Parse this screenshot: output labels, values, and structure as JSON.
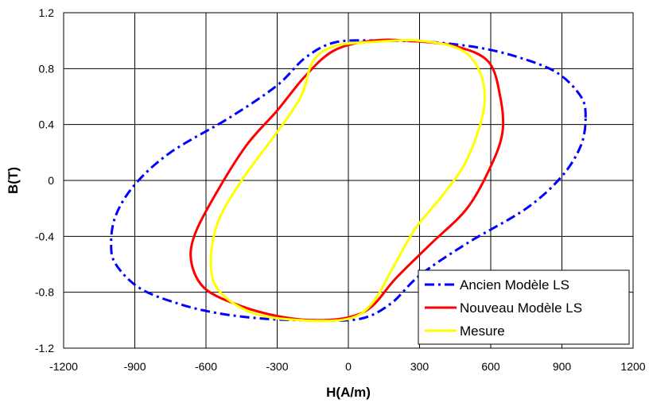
{
  "chart_data": {
    "type": "line",
    "title": "",
    "xlabel": "H(A/m)",
    "ylabel": "B(T)",
    "xlim": [
      -1200,
      1200
    ],
    "ylim": [
      -1.2,
      1.2
    ],
    "x_ticks": [
      -1200,
      -900,
      -600,
      -300,
      0,
      300,
      600,
      900,
      1200
    ],
    "y_ticks": [
      1.2,
      0.8,
      0.4,
      0,
      -0.4,
      -0.8,
      -1.2
    ],
    "x_tick_labels": [
      "-1200",
      "-900",
      "-600",
      "-300",
      "0",
      "300",
      "600",
      "900",
      "1200"
    ],
    "y_tick_labels": [
      "1.2",
      "0.8",
      "0.4",
      "0",
      "-0.4",
      "-0.8",
      "-1.2"
    ],
    "grid": true,
    "legend_position": "bottom-right",
    "series": [
      {
        "name": "Ancien Modèle LS",
        "color": "#0000ff",
        "style": "dash-dot",
        "points": [
          [
            1000,
            0.45
          ],
          [
            980,
            0.6
          ],
          [
            880,
            0.77
          ],
          [
            720,
            0.88
          ],
          [
            550,
            0.95
          ],
          [
            350,
            0.99
          ],
          [
            150,
            1.0
          ],
          [
            -50,
            0.99
          ],
          [
            -180,
            0.88
          ],
          [
            -300,
            0.68
          ],
          [
            -500,
            0.45
          ],
          [
            -750,
            0.2
          ],
          [
            -900,
            -0.03
          ],
          [
            -980,
            -0.25
          ],
          [
            -1000,
            -0.45
          ],
          [
            -980,
            -0.6
          ],
          [
            -880,
            -0.77
          ],
          [
            -720,
            -0.88
          ],
          [
            -550,
            -0.95
          ],
          [
            -350,
            -0.99
          ],
          [
            -150,
            -1.0
          ],
          [
            50,
            -0.99
          ],
          [
            180,
            -0.88
          ],
          [
            300,
            -0.68
          ],
          [
            500,
            -0.45
          ],
          [
            750,
            -0.2
          ],
          [
            900,
            0.03
          ],
          [
            980,
            0.25
          ],
          [
            1000,
            0.45
          ]
        ]
      },
      {
        "name": "Nouveau Modèle LS",
        "color": "#ff0000",
        "style": "solid",
        "points": [
          [
            650,
            0.35
          ],
          [
            640,
            0.6
          ],
          [
            590,
            0.85
          ],
          [
            450,
            0.96
          ],
          [
            250,
            1.0
          ],
          [
            100,
            1.0
          ],
          [
            -60,
            0.93
          ],
          [
            -180,
            0.75
          ],
          [
            -300,
            0.5
          ],
          [
            -430,
            0.25
          ],
          [
            -560,
            -0.1
          ],
          [
            -650,
            -0.4
          ],
          [
            -660,
            -0.6
          ],
          [
            -600,
            -0.78
          ],
          [
            -450,
            -0.9
          ],
          [
            -300,
            -0.97
          ],
          [
            -150,
            -1.0
          ],
          [
            0,
            -0.98
          ],
          [
            100,
            -0.9
          ],
          [
            200,
            -0.7
          ],
          [
            350,
            -0.45
          ],
          [
            500,
            -0.2
          ],
          [
            600,
            0.1
          ],
          [
            650,
            0.35
          ]
        ]
      },
      {
        "name": "Mesure",
        "color": "#ffff00",
        "style": "solid",
        "points": [
          [
            570,
            0.5
          ],
          [
            560,
            0.75
          ],
          [
            480,
            0.93
          ],
          [
            300,
            1.0
          ],
          [
            100,
            0.99
          ],
          [
            -60,
            0.96
          ],
          [
            -150,
            0.85
          ],
          [
            -200,
            0.6
          ],
          [
            -320,
            0.3
          ],
          [
            -450,
            0.0
          ],
          [
            -550,
            -0.3
          ],
          [
            -580,
            -0.6
          ],
          [
            -540,
            -0.8
          ],
          [
            -400,
            -0.95
          ],
          [
            -200,
            -1.0
          ],
          [
            0,
            -0.99
          ],
          [
            100,
            -0.88
          ],
          [
            180,
            -0.65
          ],
          [
            280,
            -0.35
          ],
          [
            400,
            -0.1
          ],
          [
            500,
            0.15
          ],
          [
            570,
            0.5
          ]
        ]
      }
    ]
  }
}
